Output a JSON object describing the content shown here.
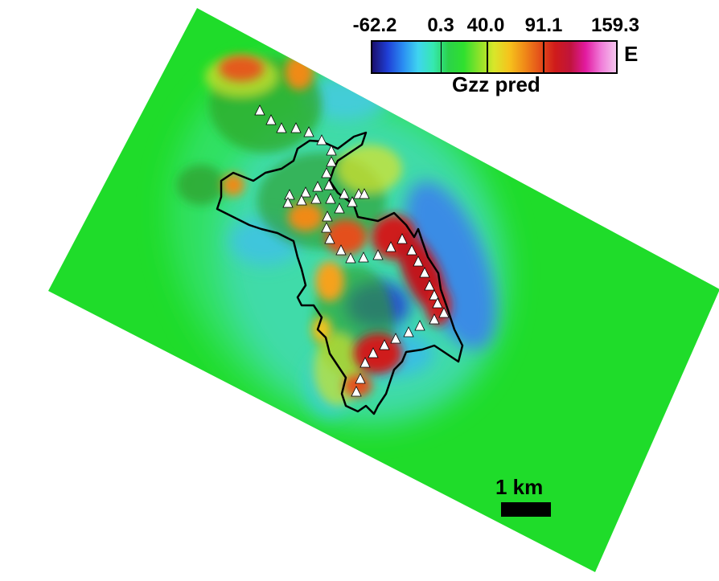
{
  "colorbar": {
    "tick_labels": [
      "-62.2",
      "0.3",
      "40.0",
      "91.1",
      "159.3"
    ],
    "unit": "E",
    "title": "Gzz pred",
    "colors": [
      "#1a0f6e",
      "#1f3fd6",
      "#2a8cf2",
      "#3fd4f0",
      "#36e8b0",
      "#2bd24a",
      "#2fe02f",
      "#8be22a",
      "#d9e62a",
      "#f6c21c",
      "#f08a18",
      "#e4501a",
      "#cf1b1b",
      "#c0143c",
      "#e21aa0",
      "#f07ad8",
      "#f5c6ee"
    ]
  },
  "map": {
    "background_color": "#1fdc2a",
    "outline_color": "#000000",
    "marker_color": "#ffffff",
    "marker_icon": "white-triangle-station-icon"
  },
  "scale_bar": {
    "label": "1 km"
  }
}
